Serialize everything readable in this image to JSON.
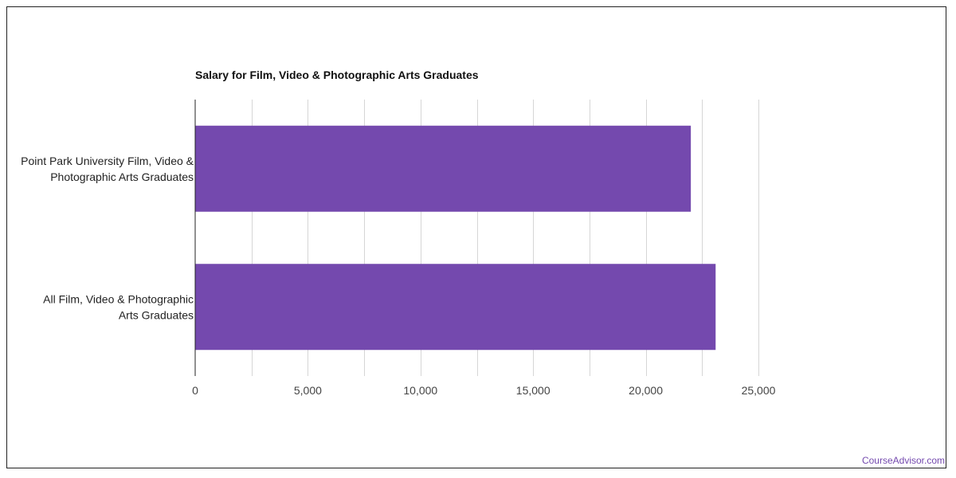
{
  "chart_data": {
    "type": "bar",
    "orientation": "horizontal",
    "title": "Salary for Film, Video & Photographic Arts Graduates",
    "categories": [
      [
        "Point Park University Film, Video &",
        "Photographic Arts Graduates"
      ],
      [
        "All Film, Video & Photographic",
        "Arts Graduates"
      ]
    ],
    "values": [
      22000,
      23100
    ],
    "xlim": [
      0,
      25000
    ],
    "x_ticks": [
      "0",
      "5,000",
      "10,000",
      "15,000",
      "20,000",
      "25,000"
    ],
    "x_tick_values": [
      0,
      5000,
      10000,
      15000,
      20000,
      25000
    ],
    "minor_grid_values": [
      2500,
      7500,
      12500,
      17500,
      22500
    ],
    "grid": true,
    "bar_color": "#7449ae"
  },
  "credit": {
    "text": "CourseAdvisor.com",
    "color": "#7449ae"
  }
}
